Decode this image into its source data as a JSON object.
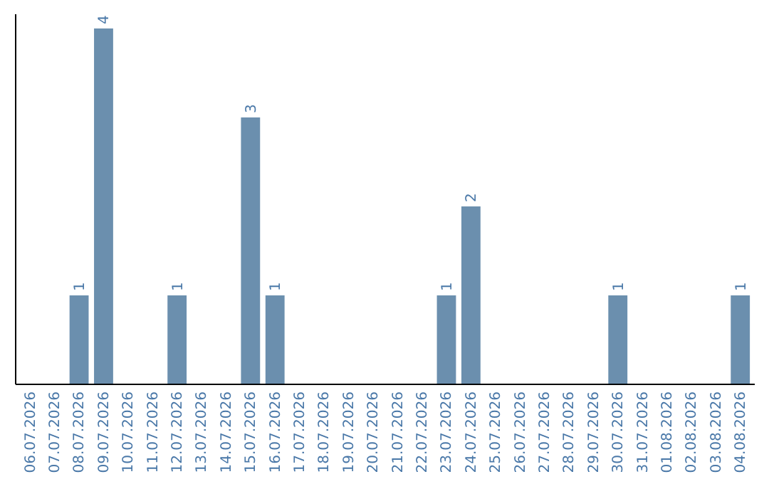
{
  "chart_data": {
    "type": "bar",
    "categories": [
      "06.07.2026",
      "07.07.2026",
      "08.07.2026",
      "09.07.2026",
      "10.07.2026",
      "11.07.2026",
      "12.07.2026",
      "13.07.2026",
      "14.07.2026",
      "15.07.2026",
      "16.07.2026",
      "17.07.2026",
      "18.07.2026",
      "19.07.2026",
      "20.07.2026",
      "21.07.2026",
      "22.07.2026",
      "23.07.2026",
      "24.07.2026",
      "25.07.2026",
      "26.07.2026",
      "27.07.2026",
      "28.07.2026",
      "29.07.2026",
      "30.07.2026",
      "31.07.2026",
      "01.08.2026",
      "02.08.2026",
      "03.08.2026",
      "04.08.2026"
    ],
    "values": [
      0,
      0,
      1,
      4,
      0,
      0,
      1,
      0,
      0,
      3,
      1,
      0,
      0,
      0,
      0,
      0,
      0,
      1,
      2,
      0,
      0,
      0,
      0,
      0,
      1,
      0,
      0,
      0,
      0,
      1
    ],
    "value_labels": [
      null,
      null,
      "1",
      "4",
      null,
      null,
      "1",
      null,
      null,
      "3",
      "1",
      null,
      null,
      null,
      null,
      null,
      null,
      "1",
      "2",
      null,
      null,
      null,
      null,
      null,
      "1",
      null,
      null,
      null,
      null,
      "1"
    ],
    "color": "#6b8fae",
    "tick_labels": "x"
  }
}
